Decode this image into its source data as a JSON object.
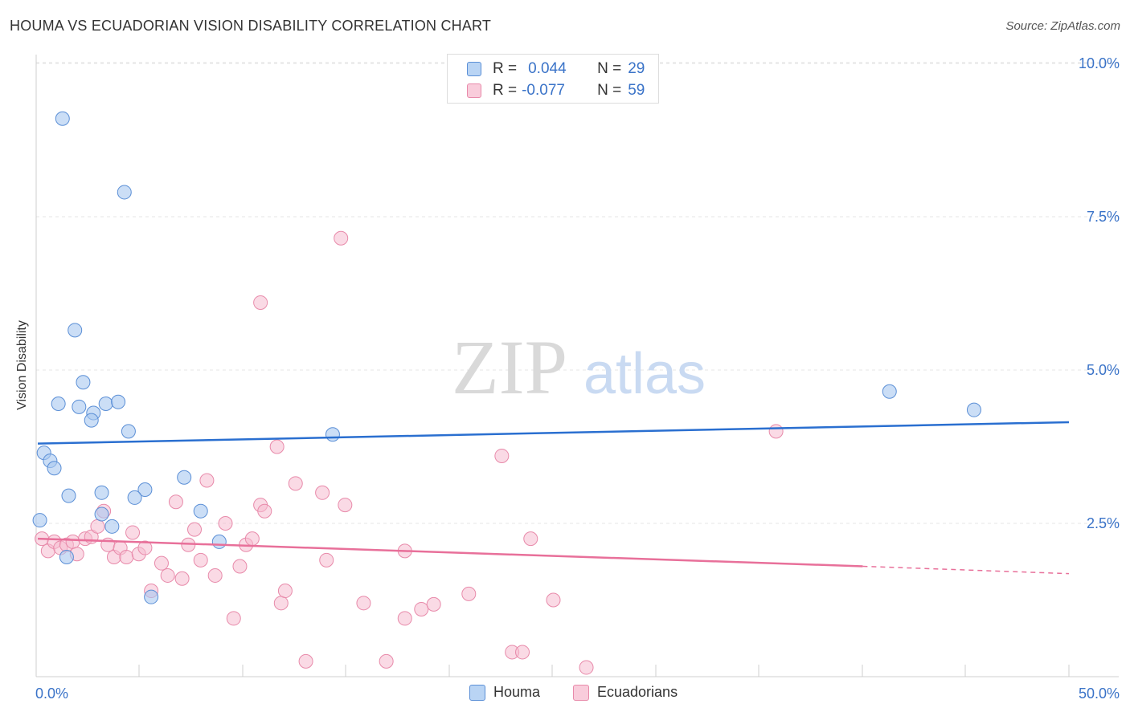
{
  "header": {
    "title": "HOUMA VS ECUADORIAN VISION DISABILITY CORRELATION CHART",
    "source": "Source: ZipAtlas.com"
  },
  "legend": {
    "series1": {
      "r_label": "R =",
      "r_value": "0.044",
      "n_label": "N =",
      "n_value": "29"
    },
    "series2": {
      "r_label": "R =",
      "r_value": "-0.077",
      "n_label": "N =",
      "n_value": "59"
    }
  },
  "bottom_legend": {
    "houma": "Houma",
    "ecuadorians": "Ecuadorians"
  },
  "watermark": {
    "zip": "ZIP",
    "atlas": "atlas"
  },
  "chart_data": {
    "type": "scatter",
    "title": "HOUMA VS ECUADORIAN VISION DISABILITY CORRELATION CHART",
    "xlabel": "",
    "ylabel": "Vision Disability",
    "xlim": [
      0,
      50
    ],
    "ylim": [
      0,
      10.5
    ],
    "x_tick_labels": [
      "0.0%",
      "50.0%"
    ],
    "y_ticks": [
      2.5,
      5.0,
      7.5,
      10.0
    ],
    "y_tick_labels": [
      "2.5%",
      "5.0%",
      "7.5%",
      "10.0%"
    ],
    "grid": true,
    "colors": {
      "houma_fill": "#a8c8f0",
      "houma_stroke": "#5b8fd6",
      "houma_line": "#2a6fd0",
      "ecu_fill": "#f6bcd0",
      "ecu_stroke": "#e88aaa",
      "ecu_line": "#e8709a"
    },
    "series": [
      {
        "name": "Houma",
        "trend": {
          "x0": 0,
          "y0": 3.8,
          "x1": 50,
          "y1": 4.15
        },
        "points": [
          [
            1.2,
            9.1
          ],
          [
            4.2,
            7.9
          ],
          [
            1.8,
            5.65
          ],
          [
            2.2,
            4.8
          ],
          [
            1.0,
            4.45
          ],
          [
            2.0,
            4.4
          ],
          [
            3.3,
            4.45
          ],
          [
            3.9,
            4.48
          ],
          [
            2.7,
            4.3
          ],
          [
            2.6,
            4.18
          ],
          [
            4.4,
            4.0
          ],
          [
            14.3,
            3.95
          ],
          [
            0.3,
            3.65
          ],
          [
            0.6,
            3.52
          ],
          [
            0.8,
            3.4
          ],
          [
            7.1,
            3.25
          ],
          [
            5.2,
            3.05
          ],
          [
            3.1,
            3.0
          ],
          [
            1.5,
            2.95
          ],
          [
            4.7,
            2.92
          ],
          [
            7.9,
            2.7
          ],
          [
            3.1,
            2.65
          ],
          [
            0.1,
            2.55
          ],
          [
            3.6,
            2.45
          ],
          [
            8.8,
            2.2
          ],
          [
            1.4,
            1.95
          ],
          [
            5.5,
            1.3
          ],
          [
            41.3,
            4.65
          ],
          [
            45.4,
            4.35
          ]
        ]
      },
      {
        "name": "Ecuadorians",
        "trend": {
          "x0": 0,
          "y0": 2.25,
          "x1": 40,
          "y1": 1.8,
          "dashed_to_x": 50,
          "dashed_to_y": 1.68
        },
        "points": [
          [
            0.2,
            2.25
          ],
          [
            0.5,
            2.05
          ],
          [
            0.8,
            2.2
          ],
          [
            1.1,
            2.1
          ],
          [
            1.4,
            2.15
          ],
          [
            1.7,
            2.2
          ],
          [
            1.9,
            2.0
          ],
          [
            2.3,
            2.25
          ],
          [
            2.6,
            2.28
          ],
          [
            2.9,
            2.45
          ],
          [
            3.2,
            2.7
          ],
          [
            3.4,
            2.15
          ],
          [
            3.7,
            1.95
          ],
          [
            4.0,
            2.1
          ],
          [
            4.3,
            1.95
          ],
          [
            4.6,
            2.35
          ],
          [
            4.9,
            2.0
          ],
          [
            5.2,
            2.1
          ],
          [
            5.5,
            1.4
          ],
          [
            6.0,
            1.85
          ],
          [
            6.3,
            1.65
          ],
          [
            6.7,
            2.85
          ],
          [
            7.0,
            1.6
          ],
          [
            7.3,
            2.15
          ],
          [
            7.6,
            2.4
          ],
          [
            7.9,
            1.9
          ],
          [
            8.2,
            3.2
          ],
          [
            8.6,
            1.65
          ],
          [
            9.1,
            2.5
          ],
          [
            9.5,
            0.95
          ],
          [
            9.8,
            1.8
          ],
          [
            10.1,
            2.15
          ],
          [
            10.4,
            2.25
          ],
          [
            10.8,
            2.8
          ],
          [
            11.0,
            2.7
          ],
          [
            11.6,
            3.75
          ],
          [
            11.8,
            1.2
          ],
          [
            12.0,
            1.4
          ],
          [
            12.5,
            3.15
          ],
          [
            13.0,
            0.25
          ],
          [
            13.8,
            3.0
          ],
          [
            14.0,
            1.9
          ],
          [
            14.9,
            2.8
          ],
          [
            15.8,
            1.2
          ],
          [
            16.9,
            0.25
          ],
          [
            17.8,
            2.05
          ],
          [
            17.8,
            0.95
          ],
          [
            18.6,
            1.1
          ],
          [
            19.2,
            1.18
          ],
          [
            20.9,
            1.35
          ],
          [
            22.5,
            3.6
          ],
          [
            23.0,
            0.4
          ],
          [
            23.5,
            0.4
          ],
          [
            23.9,
            2.25
          ],
          [
            25.0,
            1.25
          ],
          [
            26.6,
            0.15
          ],
          [
            10.8,
            6.1
          ],
          [
            14.7,
            7.15
          ],
          [
            35.8,
            4.0
          ]
        ]
      }
    ]
  }
}
